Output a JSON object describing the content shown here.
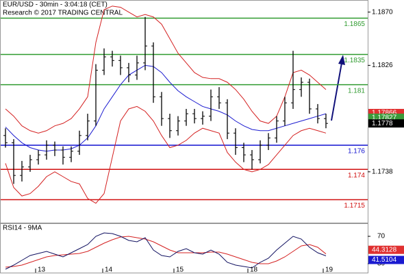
{
  "chart_data": {
    "type": "ohlc",
    "title": "EUR/USD - 30min - 3:04:18 (CET)",
    "subtitle": "Research © 2017 TRADING CENTRAL",
    "ylim": [
      1.1696,
      1.188
    ],
    "yticks": [
      {
        "value": 1.187,
        "label": "1.1870"
      },
      1.1826,
      1.1738
    ],
    "candles": [
      [
        1.1768,
        1.1774,
        1.1758,
        1.1762
      ],
      [
        1.1762,
        1.1765,
        1.1728,
        1.1735
      ],
      [
        1.1735,
        1.1747,
        1.173,
        1.1742
      ],
      [
        1.1742,
        1.1752,
        1.1738,
        1.1748
      ],
      [
        1.1748,
        1.1756,
        1.1744,
        1.1752
      ],
      [
        1.1752,
        1.1764,
        1.1748,
        1.176
      ],
      [
        1.176,
        1.1763,
        1.1751,
        1.1756
      ],
      [
        1.1756,
        1.1759,
        1.1744,
        1.175
      ],
      [
        1.175,
        1.1759,
        1.1746,
        1.1755
      ],
      [
        1.1755,
        1.1772,
        1.1752,
        1.1768
      ],
      [
        1.1768,
        1.1786,
        1.1764,
        1.178
      ],
      [
        1.178,
        1.1827,
        1.1776,
        1.1822
      ],
      [
        1.1822,
        1.184,
        1.1818,
        1.1833
      ],
      [
        1.1833,
        1.1838,
        1.1825,
        1.183
      ],
      [
        1.183,
        1.1834,
        1.1818,
        1.1824
      ],
      [
        1.1824,
        1.1828,
        1.1812,
        1.1818
      ],
      [
        1.1818,
        1.1834,
        1.1814,
        1.1828
      ],
      [
        1.1828,
        1.1866,
        1.1822,
        1.1842
      ],
      [
        1.1842,
        1.1845,
        1.1795,
        1.18
      ],
      [
        1.18,
        1.1804,
        1.1776,
        1.1782
      ],
      [
        1.1782,
        1.1786,
        1.1766,
        1.1772
      ],
      [
        1.1772,
        1.1784,
        1.1768,
        1.178
      ],
      [
        1.178,
        1.179,
        1.1776,
        1.1786
      ],
      [
        1.1786,
        1.179,
        1.1778,
        1.1782
      ],
      [
        1.1782,
        1.1788,
        1.1777,
        1.1784
      ],
      [
        1.1784,
        1.1806,
        1.178,
        1.18
      ],
      [
        1.18,
        1.1808,
        1.179,
        1.1795
      ],
      [
        1.1795,
        1.1798,
        1.1765,
        1.177
      ],
      [
        1.177,
        1.1774,
        1.1752,
        1.1758
      ],
      [
        1.1758,
        1.1762,
        1.1746,
        1.1752
      ],
      [
        1.1752,
        1.1756,
        1.174,
        1.1748
      ],
      [
        1.1748,
        1.1764,
        1.1745,
        1.176
      ],
      [
        1.176,
        1.177,
        1.1756,
        1.1766
      ],
      [
        1.1766,
        1.1784,
        1.1762,
        1.178
      ],
      [
        1.178,
        1.18,
        1.1776,
        1.1795
      ],
      [
        1.1795,
        1.1838,
        1.179,
        1.1806
      ],
      [
        1.1806,
        1.1816,
        1.18,
        1.1812
      ],
      [
        1.1812,
        1.1815,
        1.1786,
        1.179
      ],
      [
        1.179,
        1.1794,
        1.1778,
        1.1782
      ],
      [
        1.1782,
        1.1786,
        1.1774,
        1.1778
      ]
    ],
    "upper_band": [
      1.179,
      1.1784,
      1.1776,
      1.1772,
      1.177,
      1.1772,
      1.1776,
      1.1778,
      1.1782,
      1.179,
      1.18,
      1.1845,
      1.1872,
      1.1875,
      1.1874,
      1.187,
      1.1866,
      1.1868,
      1.1866,
      1.186,
      1.1848,
      1.1836,
      1.1828,
      1.182,
      1.1816,
      1.1815,
      1.1815,
      1.1812,
      1.1806,
      1.1798,
      1.1788,
      1.178,
      1.1778,
      1.1784,
      1.18,
      1.182,
      1.1822,
      1.1818,
      1.1812,
      1.1806
    ],
    "lower_band": [
      1.1745,
      1.1725,
      1.1718,
      1.172,
      1.1726,
      1.1734,
      1.1738,
      1.1734,
      1.173,
      1.1728,
      1.1716,
      1.1712,
      1.172,
      1.175,
      1.178,
      1.179,
      1.1792,
      1.1788,
      1.178,
      1.1768,
      1.1758,
      1.176,
      1.1764,
      1.177,
      1.1774,
      1.1772,
      1.177,
      1.1754,
      1.1746,
      1.174,
      1.1738,
      1.174,
      1.1744,
      1.1752,
      1.176,
      1.1768,
      1.1772,
      1.1774,
      1.1772,
      1.177
    ],
    "moving_average": [
      1.1775,
      1.1768,
      1.1762,
      1.1758,
      1.1756,
      1.1755,
      1.1756,
      1.1756,
      1.1757,
      1.176,
      1.1766,
      1.1776,
      1.179,
      1.18,
      1.181,
      1.1818,
      1.1822,
      1.1826,
      1.1825,
      1.182,
      1.1812,
      1.1805,
      1.18,
      1.1796,
      1.1792,
      1.179,
      1.1788,
      1.1785,
      1.178,
      1.1776,
      1.1773,
      1.1772,
      1.1772,
      1.1774,
      1.1776,
      1.1778,
      1.178,
      1.1782,
      1.1784,
      1.1786
    ],
    "band_color": "#d42020",
    "ma_color": "#1a1ad0",
    "levels": [
      {
        "value": 1.1865,
        "color": "#2e9a2e"
      },
      {
        "value": 1.1835,
        "color": "#2e9a2e"
      },
      {
        "value": 1.181,
        "color": "#2e9a2e"
      },
      {
        "value": 1.176,
        "color": "#1010d0"
      },
      {
        "value": 1.174,
        "color": "#d01010"
      },
      {
        "value": 1.1715,
        "color": "#d01010"
      }
    ],
    "price_tags": [
      {
        "value": 1.17866,
        "color": "#e03030"
      },
      {
        "value": 1.17827,
        "color": "#3a9a3a"
      },
      {
        "value": 1.1778,
        "color": "#000000"
      }
    ],
    "categories": [
      "13",
      "14",
      "15",
      "18",
      "19"
    ],
    "rsi": {
      "title": "RSI14 - 9MA",
      "ylim": [
        17,
        89
      ],
      "yticks": [
        70,
        30
      ],
      "values": [
        22,
        28,
        35,
        42,
        45,
        48,
        44,
        40,
        46,
        52,
        58,
        70,
        75,
        74,
        70,
        64,
        62,
        68,
        50,
        42,
        40,
        48,
        52,
        46,
        44,
        50,
        44,
        32,
        28,
        26,
        24,
        32,
        38,
        50,
        60,
        70,
        66,
        54,
        46,
        41.5104
      ],
      "ma": [
        25,
        26,
        28,
        32,
        36,
        40,
        42,
        43,
        44,
        45,
        48,
        54,
        60,
        65,
        69,
        70,
        68,
        66,
        62,
        56,
        50,
        46,
        46,
        46,
        46,
        47,
        47,
        44,
        40,
        36,
        32,
        30,
        30,
        34,
        40,
        48,
        56,
        58,
        54,
        44.3128
      ],
      "color": "#101060",
      "ma_color": "#d42020",
      "tags": [
        {
          "value": 44.3128,
          "color": "#e03030"
        },
        {
          "value": 41.5104,
          "color": "#1a1ad0"
        }
      ]
    }
  }
}
